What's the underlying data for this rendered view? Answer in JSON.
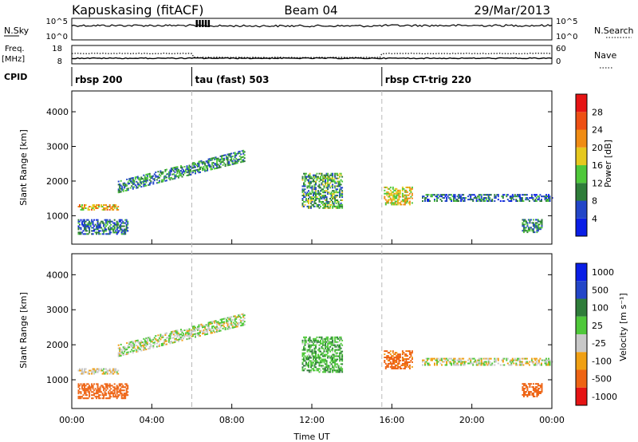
{
  "header": {
    "station": "Kapuskasing (fitACF)",
    "beam": "Beam 04",
    "date": "29/Mar/2013"
  },
  "params": {
    "nsky_label": "N.Sky",
    "nsky_ticks": [
      "10^5",
      "10^0"
    ],
    "nsearch_label": "N.Search",
    "nsearch_ticks": [
      "10^5",
      "10^0"
    ],
    "freq_label": "Freq.",
    "freq_unit": "[MHz]",
    "freq_ticks": [
      "18",
      "8"
    ],
    "nave_label": "Nave",
    "nave_ticks": [
      "60",
      "0"
    ],
    "cpid_label": "CPID"
  },
  "cpid_segments": [
    {
      "label": "rbsp 200",
      "start_hr": 0,
      "end_hr": 6
    },
    {
      "label": "tau (fast) 503",
      "start_hr": 6,
      "end_hr": 15.5
    },
    {
      "label": "rbsp CT-trig 220",
      "start_hr": 15.5,
      "end_hr": 24
    }
  ],
  "x_axis": {
    "label": "Time UT",
    "ticks": [
      "00:00",
      "04:00",
      "08:00",
      "12:00",
      "16:00",
      "20:00",
      "00:00"
    ]
  },
  "y_axis": {
    "label": "Slant Range [km]",
    "ticks": [
      "1000",
      "2000",
      "3000",
      "4000"
    ]
  },
  "colorbars": {
    "power": {
      "label": "Power [dB]",
      "ticks": [
        "4",
        "8",
        "12",
        "16",
        "20",
        "24",
        "28"
      ],
      "colors": [
        "#0a1ee6",
        "#2346c8",
        "#2f7d3a",
        "#4fc83a",
        "#e6c81e",
        "#f08c14",
        "#ee5014",
        "#e61414"
      ]
    },
    "velocity": {
      "label": "Velocity [m s⁻¹]",
      "ticks": [
        "1000",
        "500",
        "100",
        "25",
        "-25",
        "-100",
        "-500",
        "-1000"
      ],
      "colors": [
        "#0a1ee6",
        "#2346c8",
        "#2f7d3a",
        "#4fc83a",
        "#c8c8c8",
        "#f0a014",
        "#ee6414",
        "#e61414"
      ]
    }
  },
  "chart_data": {
    "type": "heatmap",
    "title": "Kapuskasing (fitACF) Beam 04 29/Mar/2013",
    "xlabel": "Time UT",
    "ylabel": "Slant Range [km]",
    "xlim": [
      0,
      24
    ],
    "ylim": [
      180,
      4600
    ],
    "mode_change_times_hr": [
      6,
      15.5
    ],
    "echo_regions": [
      {
        "name": "rbsp 200 band",
        "t_start": 0.3,
        "t_end": 2.3,
        "range_start": 1150,
        "range_end": 1300,
        "power_db": 20,
        "velocity": -20
      },
      {
        "name": "rising E/F trace",
        "t_start": 2.3,
        "t_end": 8.6,
        "range_start": 1700,
        "range_end": 2900,
        "power_db": 10,
        "velocity": 10
      },
      {
        "name": "near-range ground echoes",
        "t_start": 0.3,
        "t_end": 2.8,
        "range_start": 450,
        "range_end": 900,
        "power_db": 8,
        "velocity": -200
      },
      {
        "name": "midday patch",
        "t_start": 11.5,
        "t_end": 13.5,
        "range_start": 1200,
        "range_end": 2200,
        "power_db": 12,
        "velocity": 80
      },
      {
        "name": "afternoon patch",
        "t_start": 15.6,
        "t_end": 17,
        "range_start": 1300,
        "range_end": 1800,
        "power_db": 18,
        "velocity": -150
      },
      {
        "name": "evening band",
        "t_start": 17.5,
        "t_end": 24,
        "range_start": 1400,
        "range_end": 1600,
        "power_db": 8,
        "velocity": 0
      },
      {
        "name": "late evening near range",
        "t_start": 22.5,
        "t_end": 23.5,
        "range_start": 500,
        "range_end": 900,
        "power_db": 10,
        "velocity": -300
      }
    ]
  }
}
